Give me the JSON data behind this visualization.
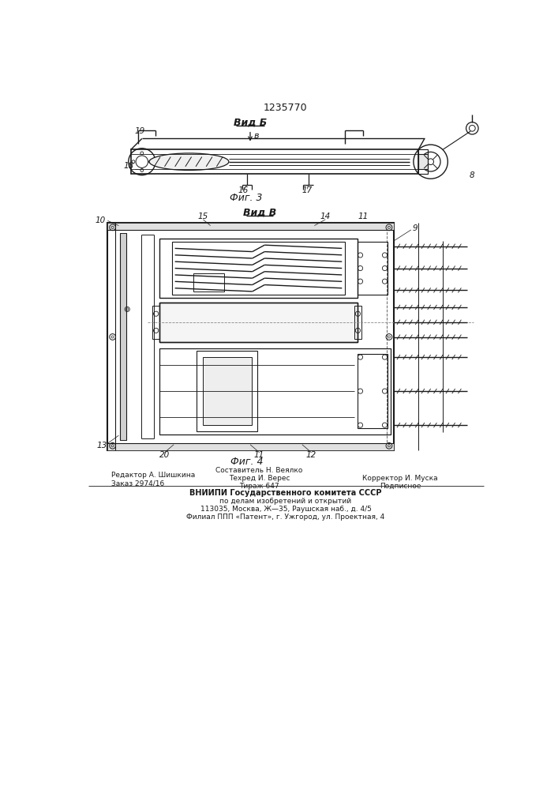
{
  "patent_number": "1235770",
  "bg_color": "#ffffff",
  "line_color": "#1a1a1a",
  "footer": {
    "editor": "Редактор А. Шишкина",
    "order": "Заказ 2974/16",
    "compiler": "Составитель Н. Веялко",
    "techred": "Техред И. Верес",
    "circulation": "Тираж 647",
    "corrector": "Корректор И. Муска",
    "podpisnoe": "Подписное",
    "org_line1": "ВНИИПИ Государственного комитета СССР",
    "org_line2": "по делам изобретений и открытий",
    "org_line3": "113035, Москва, Ж—35, Раушская наб., д. 4/5",
    "org_line4": "Филиал ППП «Патент», г. Ужгород, ул. Проектная, 4"
  },
  "fig3_label": "Фиг. 3",
  "fig4_label": "Фиг. 4",
  "view_b_label": "Вид Б",
  "view_v_label": "Вид В",
  "arrow_label": "в"
}
